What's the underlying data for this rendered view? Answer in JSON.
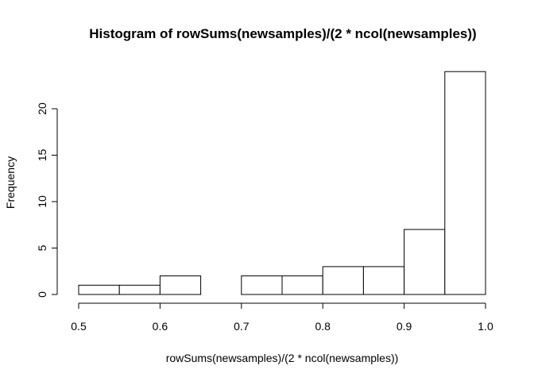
{
  "chart_data": {
    "type": "bar",
    "title": "Histogram of rowSums(newsamples)/(2 * ncol(newsamples))",
    "xlabel": "rowSums(newsamples)/(2 * ncol(newsamples))",
    "ylabel": "Frequency",
    "bins": [
      {
        "from": 0.5,
        "to": 0.55,
        "count": 1
      },
      {
        "from": 0.55,
        "to": 0.6,
        "count": 1
      },
      {
        "from": 0.6,
        "to": 0.65,
        "count": 2
      },
      {
        "from": 0.65,
        "to": 0.7,
        "count": 0
      },
      {
        "from": 0.7,
        "to": 0.75,
        "count": 2
      },
      {
        "from": 0.75,
        "to": 0.8,
        "count": 2
      },
      {
        "from": 0.8,
        "to": 0.85,
        "count": 3
      },
      {
        "from": 0.85,
        "to": 0.9,
        "count": 3
      },
      {
        "from": 0.9,
        "to": 0.95,
        "count": 7
      },
      {
        "from": 0.95,
        "to": 1.0,
        "count": 24
      }
    ],
    "x_ticks": [
      "0.5",
      "0.6",
      "0.7",
      "0.8",
      "0.9",
      "1.0"
    ],
    "y_ticks": [
      "0",
      "5",
      "10",
      "15",
      "20"
    ],
    "xlim": [
      0.5,
      1.0
    ],
    "ylim": [
      0,
      24
    ],
    "grid": false,
    "legend": "none",
    "bar_fill": "#ffffff",
    "bar_stroke": "#000000"
  }
}
